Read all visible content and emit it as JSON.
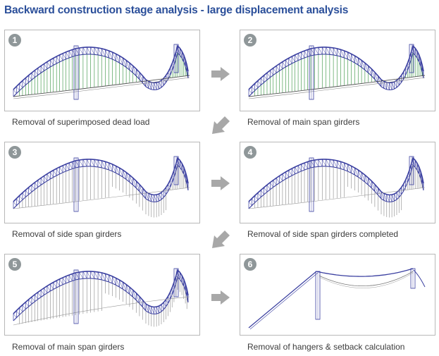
{
  "title": "Backward construction stage analysis - large displacement analysis",
  "stages": [
    {
      "number": "1",
      "caption": "Removal of superimposed dead load",
      "variant": "full"
    },
    {
      "number": "2",
      "caption": "Removal of main span girders",
      "variant": "full"
    },
    {
      "number": "3",
      "caption": "Removal of side span girders",
      "variant": "partial"
    },
    {
      "number": "4",
      "caption": "Removal of side span girders completed",
      "variant": "partial"
    },
    {
      "number": "5",
      "caption": "Removal of main span girders",
      "variant": "main"
    },
    {
      "number": "6",
      "caption": "Removal of hangers & setback calculation",
      "variant": "cable"
    }
  ],
  "colors": {
    "title": "#2b4f9a",
    "cable": "#3a3fa0",
    "hanger": "#2f8f3a",
    "badge": "#8f9799",
    "arrow": "#a8a8a8",
    "frame": "#b8b8b8"
  }
}
